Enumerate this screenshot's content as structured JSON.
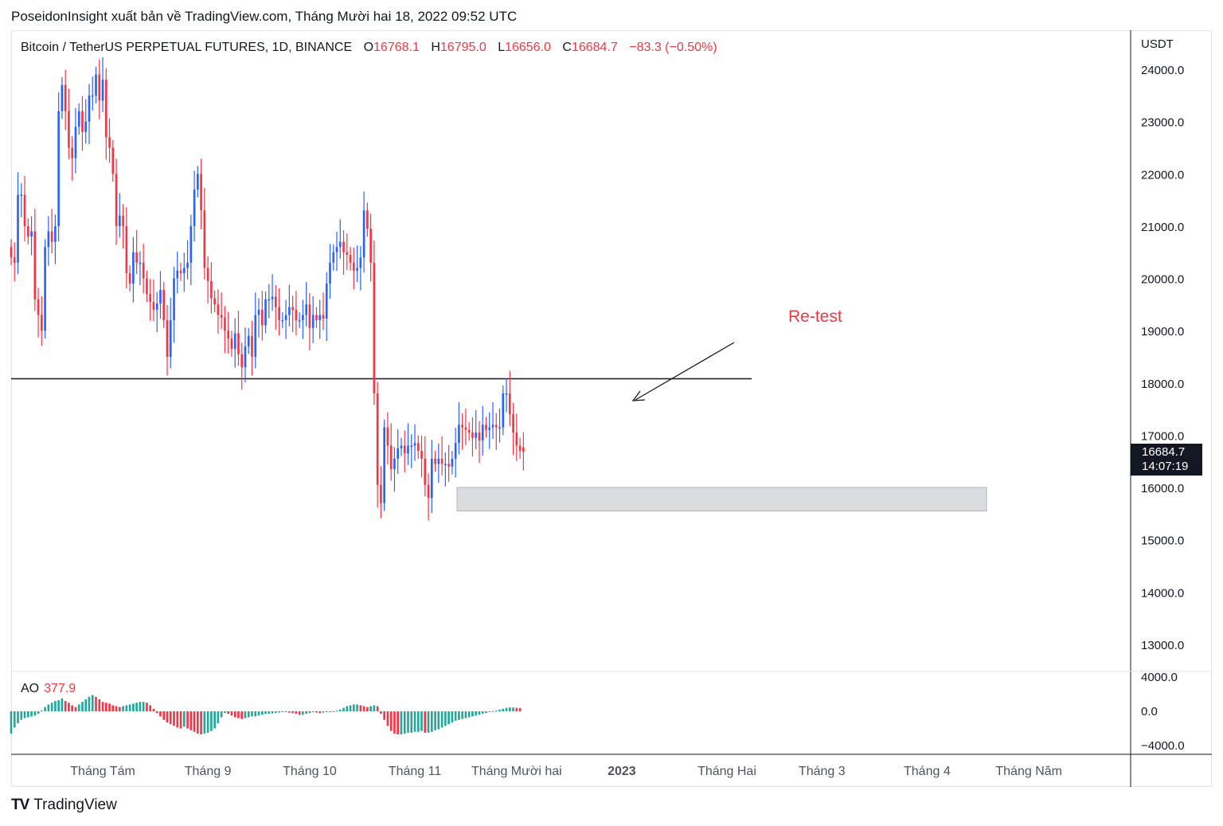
{
  "header": {
    "title": "PoseidonInsight xuất bản về TradingView.com, Tháng Mười hai 18, 2022 09:52 UTC"
  },
  "legend": {
    "symbol": "Bitcoin / TetherUS PERPETUAL FUTURES, 1D, BINANCE",
    "open_label": "O",
    "open": "16768.1",
    "high_label": "H",
    "high": "16795.0",
    "low_label": "L",
    "low": "16656.0",
    "close_label": "C",
    "close": "16684.7",
    "change": "−83.3 (−0.50%)"
  },
  "ao_legend": {
    "label": "AO",
    "value": "377.9"
  },
  "annotation": {
    "text": "Re-test"
  },
  "price_axis": {
    "currency": "USDT",
    "ticks": [
      "24000.0",
      "23000.0",
      "22000.0",
      "21000.0",
      "20000.0",
      "19000.0",
      "18000.0",
      "17000.0",
      "16000.0",
      "15000.0",
      "14000.0",
      "13000.0"
    ],
    "last_price": "16684.7",
    "countdown": "14:07:19"
  },
  "ao_axis": {
    "ticks": [
      "4000.0",
      "0.0",
      "−4000.0"
    ]
  },
  "time_axis": {
    "labels": [
      "Tháng Tám",
      "Tháng 9",
      "Tháng 10",
      "Tháng 11",
      "Tháng Mười hai",
      "2023",
      "Tháng Hai",
      "Tháng 3",
      "Tháng 4",
      "Tháng Năm"
    ]
  },
  "footer": {
    "brand": "TradingView"
  },
  "colors": {
    "up": "#2962ff",
    "down": "#f23645",
    "ao_up": "#26a69a",
    "ao_down": "#f23645",
    "zone": "#d1d4dc",
    "line": "#131722"
  },
  "chart_data": [
    {
      "type": "candlestick",
      "title": "Bitcoin / TetherUS PERPETUAL FUTURES, 1D, BINANCE",
      "ylabel": "USDT",
      "ylim": [
        12500,
        24800
      ],
      "x_range_days": [
        "2022-07-05",
        "2023-05-31"
      ],
      "x_ticks": [
        "Tháng Tám",
        "Tháng 9",
        "Tháng 10",
        "Tháng 11",
        "Tháng Mười hai",
        "2023",
        "Tháng Hai",
        "Tháng 3",
        "Tháng 4",
        "Tháng Năm"
      ],
      "series": [
        {
          "start": "2022-07-05",
          "interval": "1D",
          "close": [
            20400,
            20300,
            21600,
            21600,
            21000,
            20800,
            20900,
            19600,
            19300,
            19000,
            20600,
            20900,
            20700,
            21000,
            23200,
            23700,
            23200,
            22500,
            22300,
            22900,
            23200,
            22800,
            23000,
            23500,
            23500,
            23900,
            23400,
            23800,
            22700,
            22500,
            22000,
            21000,
            21200,
            21000,
            20100,
            19900,
            20500,
            20300,
            20300,
            20000,
            19700,
            19550,
            19400,
            19520,
            19780,
            19200,
            18500,
            19200,
            20000,
            20150,
            20100,
            20200,
            20300,
            21000,
            21700,
            22000,
            21300,
            20200,
            19950,
            19620,
            19500,
            19300,
            19250,
            19000,
            18850,
            18650,
            18950,
            18550,
            18300,
            18700,
            18900,
            18500,
            19300,
            19400,
            19100,
            19600,
            19600,
            19650,
            19450,
            19200,
            19200,
            19300,
            19450,
            19400,
            19200,
            19200,
            19300,
            19500,
            19050,
            19300,
            19200,
            19300,
            19230,
            19900,
            20300,
            20500,
            20600,
            20700,
            20500,
            20450,
            20300,
            20150,
            20200,
            20400,
            21300,
            20950,
            20300,
            17800,
            16050,
            15700,
            17150,
            16800,
            16350,
            16550,
            16750,
            16800,
            16650,
            16800,
            16800,
            16850,
            16700,
            16550,
            16050,
            15800,
            16550,
            16450,
            16550,
            16450,
            16450,
            16400,
            16550,
            16850,
            17200,
            17150,
            17100,
            17050,
            16950,
            17050,
            16900,
            17200,
            17100,
            17150,
            17200,
            17150,
            17150,
            17800,
            17800,
            17400,
            17050,
            16800,
            16700,
            16684.7
          ],
          "open": [
            20600,
            20400,
            20300,
            21600,
            21600,
            21000,
            20800,
            20900,
            19600,
            19300,
            19000,
            20600,
            20900,
            20700,
            21000,
            23200,
            23700,
            23200,
            22500,
            22300,
            22900,
            23200,
            22800,
            23000,
            23500,
            23500,
            23900,
            23400,
            23800,
            22700,
            22500,
            22000,
            21000,
            21200,
            21000,
            20100,
            19900,
            20500,
            20300,
            20300,
            20000,
            19700,
            19550,
            19400,
            19520,
            19780,
            19200,
            18500,
            19200,
            20000,
            20150,
            20100,
            20200,
            20300,
            21000,
            21700,
            22000,
            21300,
            20200,
            19950,
            19620,
            19500,
            19300,
            19250,
            19000,
            18850,
            18650,
            18950,
            18550,
            18300,
            18700,
            18900,
            18500,
            19300,
            19400,
            19100,
            19600,
            19600,
            19650,
            19450,
            19200,
            19200,
            19300,
            19450,
            19400,
            19200,
            19200,
            19300,
            19500,
            19050,
            19300,
            19200,
            19300,
            19230,
            19900,
            20300,
            20500,
            20600,
            20700,
            20500,
            20450,
            20300,
            20150,
            20200,
            20400,
            21300,
            20950,
            20300,
            17800,
            16050,
            15700,
            17150,
            16800,
            16350,
            16550,
            16750,
            16800,
            16650,
            16800,
            16800,
            16850,
            16700,
            16550,
            16050,
            15800,
            16550,
            16450,
            16550,
            16450,
            16450,
            16400,
            16550,
            16850,
            17200,
            17150,
            17100,
            17050,
            16950,
            17050,
            16900,
            17200,
            17100,
            17150,
            17200,
            17150,
            17150,
            17800,
            17800,
            17400,
            17050,
            16800,
            16768.1
          ]
        }
      ],
      "annotations": {
        "support_line": 18080,
        "demand_zone": [
          15550,
          16000
        ],
        "text": "Re-test"
      }
    },
    {
      "type": "bar",
      "title": "AO",
      "ylim": [
        -6000,
        5000
      ],
      "ticks": [
        4000,
        0,
        -4000
      ],
      "last_value": 377.9,
      "values": [
        -2600,
        -1900,
        -1400,
        -1000,
        -800,
        -700,
        -600,
        -500,
        -300,
        100,
        500,
        800,
        1000,
        1200,
        1300,
        1500,
        1200,
        1000,
        700,
        500,
        800,
        1100,
        1400,
        1700,
        1900,
        1700,
        1400,
        1100,
        1000,
        900,
        700,
        600,
        500,
        600,
        700,
        800,
        900,
        1000,
        1100,
        1100,
        1000,
        700,
        300,
        -200,
        -600,
        -1000,
        -1300,
        -1500,
        -1700,
        -1900,
        -2000,
        -1800,
        -2000,
        -2200,
        -2400,
        -2600,
        -2700,
        -2600,
        -2500,
        -2300,
        -2000,
        -1400,
        -700,
        -200,
        -300,
        -500,
        -700,
        -800,
        -900,
        -800,
        -700,
        -600,
        -600,
        -500,
        -400,
        -300,
        -300,
        -250,
        -200,
        -150,
        -100,
        -100,
        -150,
        -200,
        -300,
        -400,
        -400,
        -300,
        -200,
        -100,
        -150,
        -200,
        -150,
        -100,
        -50,
        0,
        100,
        200,
        400,
        600,
        700,
        800,
        800,
        700,
        600,
        500,
        600,
        700,
        600,
        -300,
        -1000,
        -1700,
        -2300,
        -2600,
        -2700,
        -2700,
        -2600,
        -2500,
        -2500,
        -2400,
        -2400,
        -2300,
        -2500,
        -2500,
        -2400,
        -2200,
        -2100,
        -1900,
        -1700,
        -1500,
        -1300,
        -1100,
        -1000,
        -900,
        -800,
        -700,
        -600,
        -500,
        -400,
        -300,
        -200,
        -100,
        0,
        100,
        200,
        300,
        400,
        450,
        450,
        400,
        377.9
      ]
    }
  ]
}
